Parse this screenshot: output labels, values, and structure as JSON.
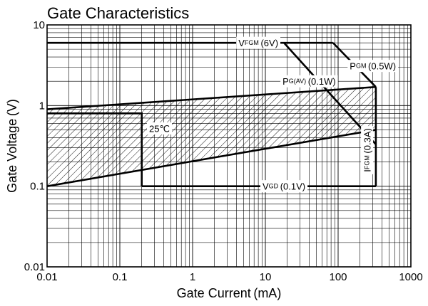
{
  "chart_data": {
    "type": "line",
    "title": "Gate Characteristics",
    "xlabel": "Gate Current (mA)",
    "ylabel": "Gate Voltage (V)",
    "x_scale": "log",
    "y_scale": "log",
    "xlim": [
      0.01,
      1000
    ],
    "ylim": [
      0.01,
      10
    ],
    "grid": true,
    "x_ticks": [
      "0.01",
      "0.1",
      "1",
      "10",
      "100",
      "1000"
    ],
    "y_ticks": [
      "10",
      "1",
      "0.1",
      "0.01"
    ],
    "series": [
      {
        "x": [
          0.01,
          85
        ],
        "y": [
          6,
          6
        ]
      },
      {
        "x": [
          85,
          330
        ],
        "y": [
          6,
          1.7
        ]
      },
      {
        "x": [
          18,
          330
        ],
        "y": [
          6,
          0.33
        ]
      },
      {
        "x": [
          330,
          330
        ],
        "y": [
          0.1,
          1.7
        ]
      },
      {
        "x": [
          0.2,
          330
        ],
        "y": [
          0.1,
          0.1
        ]
      },
      {
        "x": [
          0.01,
          330
        ],
        "y": [
          0.9,
          1.7
        ]
      },
      {
        "x": [
          0.01,
          330
        ],
        "y": [
          0.1,
          0.5
        ]
      },
      {
        "x": [
          0.01,
          0.2,
          0.2
        ],
        "y": [
          0.8,
          0.8,
          0.1
        ]
      }
    ],
    "annotations": [
      {
        "main": "V",
        "sub": "FGM",
        "rest": " (6V)",
        "x": 8,
        "y": 6
      },
      {
        "main": "P",
        "sub": "GM",
        "rest": " (0.5W)",
        "x": 300,
        "y": 3.1
      },
      {
        "main": "P",
        "sub": "G(AV)",
        "rest": " (0.1W)",
        "x": 40,
        "y": 2.0
      },
      {
        "main": "V",
        "sub": "GD",
        "rest": " (0.1V)",
        "x": 18,
        "y": 0.1
      },
      {
        "main": "I",
        "sub": "FGM",
        "rest": " (0.3A)",
        "x": 250,
        "y": 0.28,
        "rotate": true
      },
      {
        "main": "25℃",
        "sub": "",
        "rest": "",
        "x": 0.35,
        "y": 0.52
      }
    ]
  }
}
